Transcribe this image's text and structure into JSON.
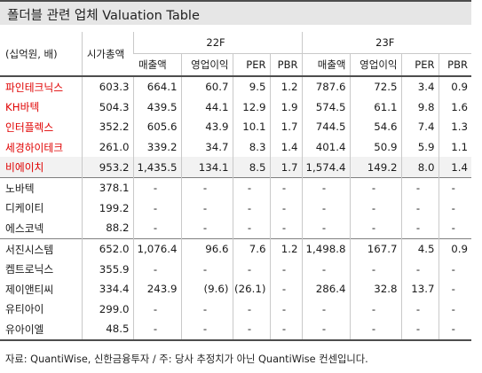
{
  "title": "폴더블 관련 업체 Valuation Table",
  "header": {
    "unit": "(십억원, 배)",
    "mktcap": "시가총액",
    "groups": [
      "22F",
      "23F"
    ],
    "cols": [
      "매출액",
      "영업이익",
      "PER",
      "PBR"
    ]
  },
  "rows": [
    {
      "name": "파인테크닉스",
      "mktcap": "603.3",
      "v": [
        "664.1",
        "60.7",
        "9.5",
        "1.2",
        "787.6",
        "72.5",
        "3.4",
        "0.9"
      ]
    },
    {
      "name": "KH바텍",
      "mktcap": "504.3",
      "v": [
        "439.5",
        "44.1",
        "12.9",
        "1.9",
        "574.5",
        "61.1",
        "9.8",
        "1.6"
      ]
    },
    {
      "name": "인터플렉스",
      "mktcap": "352.2",
      "v": [
        "605.6",
        "43.9",
        "10.1",
        "1.7",
        "744.5",
        "54.6",
        "7.4",
        "1.3"
      ]
    },
    {
      "name": "세경하이테크",
      "mktcap": "261.0",
      "v": [
        "339.2",
        "34.7",
        "8.3",
        "1.4",
        "401.4",
        "50.9",
        "5.9",
        "1.1"
      ]
    },
    {
      "name": "비에이치",
      "mktcap": "953.2",
      "v": [
        "1,435.5",
        "134.1",
        "8.5",
        "1.7",
        "1,574.4",
        "149.2",
        "8.0",
        "1.4"
      ]
    },
    {
      "name": "노바텍",
      "mktcap": "378.1",
      "v": [
        "-",
        "-",
        "-",
        "-",
        "-",
        "-",
        "-",
        "-"
      ]
    },
    {
      "name": "디케이티",
      "mktcap": "199.2",
      "v": [
        "-",
        "-",
        "-",
        "-",
        "-",
        "-",
        "-",
        "-"
      ]
    },
    {
      "name": "에스코넥",
      "mktcap": "88.2",
      "v": [
        "-",
        "-",
        "-",
        "-",
        "-",
        "-",
        "-",
        "-"
      ]
    },
    {
      "name": "서진시스템",
      "mktcap": "652.0",
      "v": [
        "1,076.4",
        "96.6",
        "7.6",
        "1.2",
        "1,498.8",
        "167.7",
        "4.5",
        "0.9"
      ]
    },
    {
      "name": "켐트로닉스",
      "mktcap": "355.9",
      "v": [
        "-",
        "-",
        "-",
        "-",
        "-",
        "-",
        "-",
        "-"
      ]
    },
    {
      "name": "제이앤티씨",
      "mktcap": "334.4",
      "v": [
        "243.9",
        "(9.6)",
        "(26.1)",
        "-",
        "286.4",
        "32.8",
        "13.7",
        "-"
      ]
    },
    {
      "name": "유티아이",
      "mktcap": "299.0",
      "v": [
        "-",
        "-",
        "-",
        "-",
        "-",
        "-",
        "-",
        "-"
      ]
    },
    {
      "name": "유아이엘",
      "mktcap": "48.5",
      "v": [
        "-",
        "-",
        "-",
        "-",
        "-",
        "-",
        "-",
        "-"
      ]
    }
  ],
  "note": "자료: QuantiWise, 신한금융투자  /  주: 당사 추정치가 아닌 QuantiWise 컨센입니다.",
  "colors": {
    "highlight_text": "#e00000",
    "highlight_bg": "#f2f2f2",
    "header_bg": "#e6e6e6"
  }
}
